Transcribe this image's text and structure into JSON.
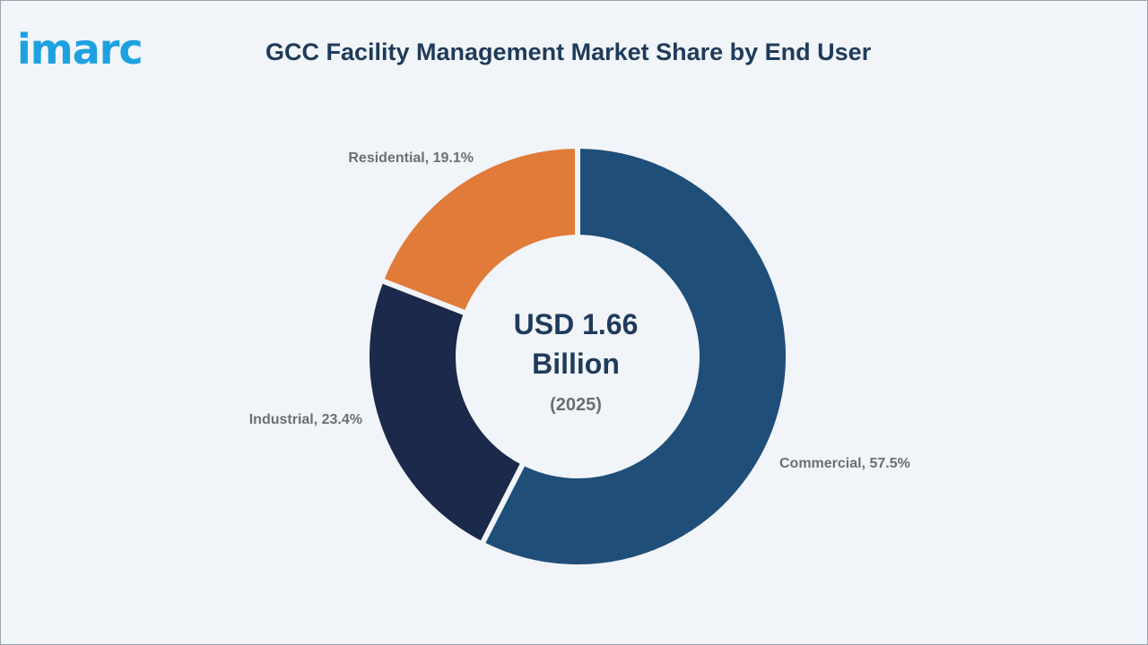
{
  "brand": {
    "logo_text": "imarc",
    "logo_color": "#1ea1e0"
  },
  "chart_data": {
    "type": "pie",
    "title": "GCC Facility Management Market Share by End User",
    "categories": [
      "Commercial",
      "Industrial",
      "Residential"
    ],
    "values": [
      57.5,
      23.4,
      19.1
    ],
    "unit": "%",
    "labels": [
      "Commercial, 57.5%",
      "Industrial, 23.4%",
      "Residential, 19.1%"
    ],
    "colors": [
      "#1f4e79",
      "#1b2a4a",
      "#e07b39"
    ],
    "center_text": {
      "line1": "USD 1.66",
      "line2": "Billion",
      "line3": "(2025)"
    },
    "legend": "none",
    "donut": true
  }
}
